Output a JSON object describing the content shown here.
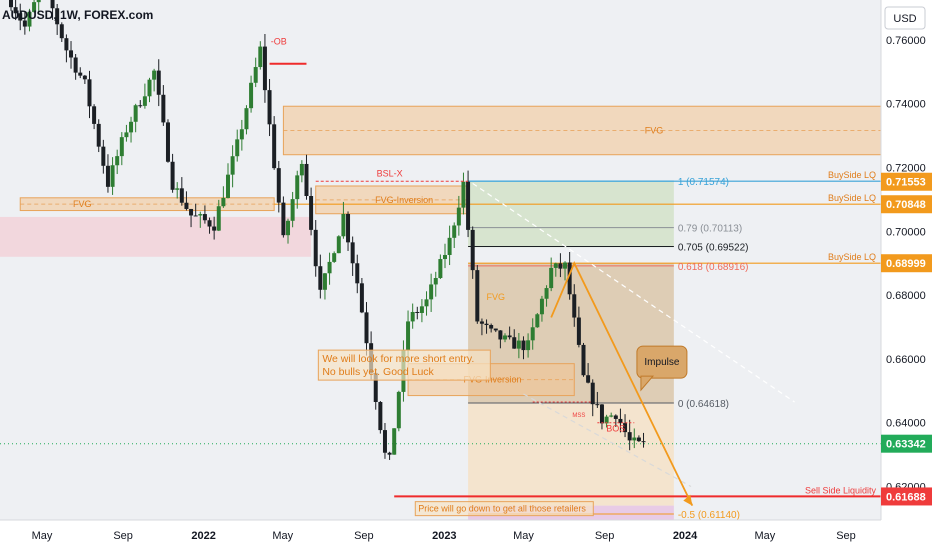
{
  "header": {
    "symbol_title": "AUDUSD, 1W, FOREX.com",
    "currency_button": "USD"
  },
  "colors": {
    "background": "#ffffff",
    "plot_bg": "#eef0f3",
    "bull": "#2e7d32",
    "bear": "#1b1f24",
    "fvg": "#f4c58f",
    "fvg_border": "#e8a35a",
    "zone_pink": "#f3cfd6",
    "zone_green": "#cfe0c3",
    "zone_brown": "#d8c2a0",
    "zone_tan": "#f6e0c2",
    "zone_purple": "#e6bfe1",
    "orange": "#f29a1d",
    "red_line": "#ef2b2b",
    "blue_line": "#3aa3d8",
    "green_badge": "#22ab5a",
    "red_badge": "#ef3b3b",
    "orange_badge": "#f29a1d"
  },
  "chart_data": {
    "type": "candlestick",
    "title": "AUDUSD, 1W, FOREX.com",
    "y_range": [
      0.6095,
      0.7725
    ],
    "y_ticks": [
      0.76,
      0.74,
      0.72,
      0.7,
      0.68,
      0.66,
      0.64,
      0.62
    ],
    "y_tick_labels": [
      "0.76000",
      "0.74000",
      "0.72000",
      "0.70000",
      "0.68000",
      "0.66000",
      "0.64000",
      "0.62000"
    ],
    "x_ticks": [
      {
        "label": "May",
        "date": "2021-05-01"
      },
      {
        "label": "Sep",
        "date": "2021-09-01"
      },
      {
        "label": "2022",
        "date": "2022-01-01",
        "bold": true
      },
      {
        "label": "May",
        "date": "2022-05-01"
      },
      {
        "label": "Sep",
        "date": "2022-09-01"
      },
      {
        "label": "2023",
        "date": "2023-01-01",
        "bold": true
      },
      {
        "label": "May",
        "date": "2023-05-01"
      },
      {
        "label": "Sep",
        "date": "2023-09-01"
      },
      {
        "label": "2024",
        "date": "2024-01-01",
        "bold": true
      },
      {
        "label": "May",
        "date": "2024-05-01"
      },
      {
        "label": "Sep",
        "date": "2024-09-01"
      }
    ],
    "price_badges": [
      {
        "value": 0.70848,
        "text": "0.70848",
        "color": "orange"
      },
      {
        "value": 0.71553,
        "text": "0.71553",
        "color": "orange"
      },
      {
        "value": 0.68999,
        "text": "0.68999",
        "color": "orange"
      },
      {
        "value": 0.63342,
        "text": "0.63342",
        "color": "green"
      },
      {
        "value": 0.61688,
        "text": "0.61688",
        "color": "red"
      }
    ],
    "path_knots": [
      [
        "2021-03-15",
        0.775
      ],
      [
        "2021-04-12",
        0.764
      ],
      [
        "2021-05-10",
        0.778
      ],
      [
        "2021-06-14",
        0.757
      ],
      [
        "2021-07-12",
        0.746
      ],
      [
        "2021-08-16",
        0.715
      ],
      [
        "2021-09-13",
        0.732
      ],
      [
        "2021-10-25",
        0.75
      ],
      [
        "2021-11-22",
        0.715
      ],
      [
        "2021-12-20",
        0.705
      ],
      [
        "2022-01-24",
        0.702
      ],
      [
        "2022-02-28",
        0.727
      ],
      [
        "2022-04-04",
        0.757
      ],
      [
        "2022-05-09",
        0.697
      ],
      [
        "2022-06-06",
        0.723
      ],
      [
        "2022-07-04",
        0.68
      ],
      [
        "2022-08-08",
        0.705
      ],
      [
        "2022-08-29",
        0.684
      ],
      [
        "2022-10-10",
        0.63
      ],
      [
        "2022-10-17",
        0.628
      ],
      [
        "2022-11-14",
        0.672
      ],
      [
        "2022-12-12",
        0.678
      ],
      [
        "2023-01-16",
        0.697
      ],
      [
        "2023-02-06",
        0.715
      ],
      [
        "2023-02-27",
        0.672
      ],
      [
        "2023-03-20",
        0.668
      ],
      [
        "2023-04-17",
        0.665
      ],
      [
        "2023-05-15",
        0.664
      ],
      [
        "2023-06-19",
        0.688
      ],
      [
        "2023-07-10",
        0.689
      ],
      [
        "2023-08-07",
        0.654
      ],
      [
        "2023-09-04",
        0.641
      ],
      [
        "2023-09-25",
        0.643
      ],
      [
        "2023-10-16",
        0.634
      ],
      [
        "2023-10-30",
        0.633
      ]
    ],
    "zones": [
      {
        "label": "FVG",
        "from": "2021-03-29",
        "to": "2022-04-18",
        "top": 0.7105,
        "bottom": 0.7065,
        "fill": "fvg",
        "label_date": "2021-07-01"
      },
      {
        "label": "FVG",
        "from": "2022-05-02",
        "to": "2024-10-30",
        "top": 0.7392,
        "bottom": 0.724,
        "fill": "fvg",
        "label_date": "2023-11-15"
      },
      {
        "label": "",
        "from": "2020-11-01",
        "to": "2022-06-13",
        "top": 0.7045,
        "bottom": 0.692,
        "fill": "zone_pink"
      },
      {
        "label": "FVG-Inversion",
        "from": "2022-06-20",
        "to": "2023-02-06",
        "top": 0.7142,
        "bottom": 0.7055,
        "fill": "fvg",
        "label_date": "2022-11-01"
      },
      {
        "label": "",
        "from": "2023-02-06",
        "to": "2023-12-15",
        "top": 0.7155,
        "bottom": 0.695,
        "fill": "zone_green"
      },
      {
        "label": "",
        "from": "2023-02-06",
        "to": "2023-12-15",
        "top": 0.69,
        "bottom": 0.646,
        "fill": "zone_brown"
      },
      {
        "label": "FVG-Inversion",
        "from": "2022-11-07",
        "to": "2023-07-17",
        "top": 0.6585,
        "bottom": 0.6485,
        "fill": "fvg",
        "label_date": "2023-03-15"
      },
      {
        "label": "",
        "from": "2023-02-06",
        "to": "2023-12-15",
        "top": 0.646,
        "bottom": 0.614,
        "fill": "zone_tan"
      },
      {
        "label": "",
        "from": "2023-02-06",
        "to": "2023-12-15",
        "top": 0.614,
        "bottom": 0.6095,
        "fill": "zone_purple"
      }
    ],
    "levels": [
      {
        "label": "BuySide LQ",
        "value": 0.7085,
        "from": "2022-04-18",
        "to": "2024-10-30",
        "color": "orange"
      },
      {
        "label": "BuySide LQ",
        "value": 0.7157,
        "from": "2023-02-06",
        "to": "2024-10-30",
        "color": "blue_line"
      },
      {
        "label": "BuySide LQ",
        "value": 0.69,
        "from": "2023-02-06",
        "to": "2024-10-30",
        "color": "orange"
      },
      {
        "label": "Sell Side Liquidity",
        "value": 0.6169,
        "from": "2022-10-17",
        "to": "2024-10-30",
        "color": "red_line"
      },
      {
        "label": "",
        "value": 0.6334,
        "from": "2020-11-01",
        "to": "2024-10-30",
        "color": "green_badge",
        "dotted": true
      }
    ],
    "fib_levels": [
      {
        "label": "1 (0.71574)",
        "value": 0.71574,
        "color": "#3aa3d8"
      },
      {
        "label": "0.79 (0.70113)",
        "value": 0.70113,
        "color": "#8a8f96"
      },
      {
        "label": "0.705 (0.69522)",
        "value": 0.69522,
        "color": "#1b1f24"
      },
      {
        "label": "0.618 (0.68916)",
        "value": 0.68916,
        "color": "#ef6b5c"
      },
      {
        "label": "0 (0.64618)",
        "value": 0.64618,
        "color": "#555b63"
      },
      {
        "label": "-0.5 (0.61140)",
        "value": 0.6114,
        "color": "#f29a1d"
      }
    ],
    "annotations": [
      {
        "text": "-OB",
        "date": "2022-04-25",
        "value": 0.7585,
        "color": "#ef3b3b"
      },
      {
        "text": "BSL-X",
        "date": "2022-10-10",
        "value": 0.7172,
        "color": "#ef3b3b"
      },
      {
        "text": "FVG",
        "date": "2023-03-20",
        "value": 0.6785,
        "color": "#f29a1d"
      },
      {
        "text": "MSS",
        "date": "2023-07-24",
        "value": 0.6418,
        "color": "#ef3b3b"
      },
      {
        "text": "BOS",
        "date": "2023-09-18",
        "value": 0.6373,
        "color": "#ef3b3b"
      }
    ],
    "notes": [
      {
        "lines": [
          "We will look for more short entry.",
          "No bulls yet. Good Luck"
        ]
      },
      {
        "lines": [
          "Price will go down to get all those retailers"
        ]
      }
    ],
    "callout": "Impulse"
  }
}
